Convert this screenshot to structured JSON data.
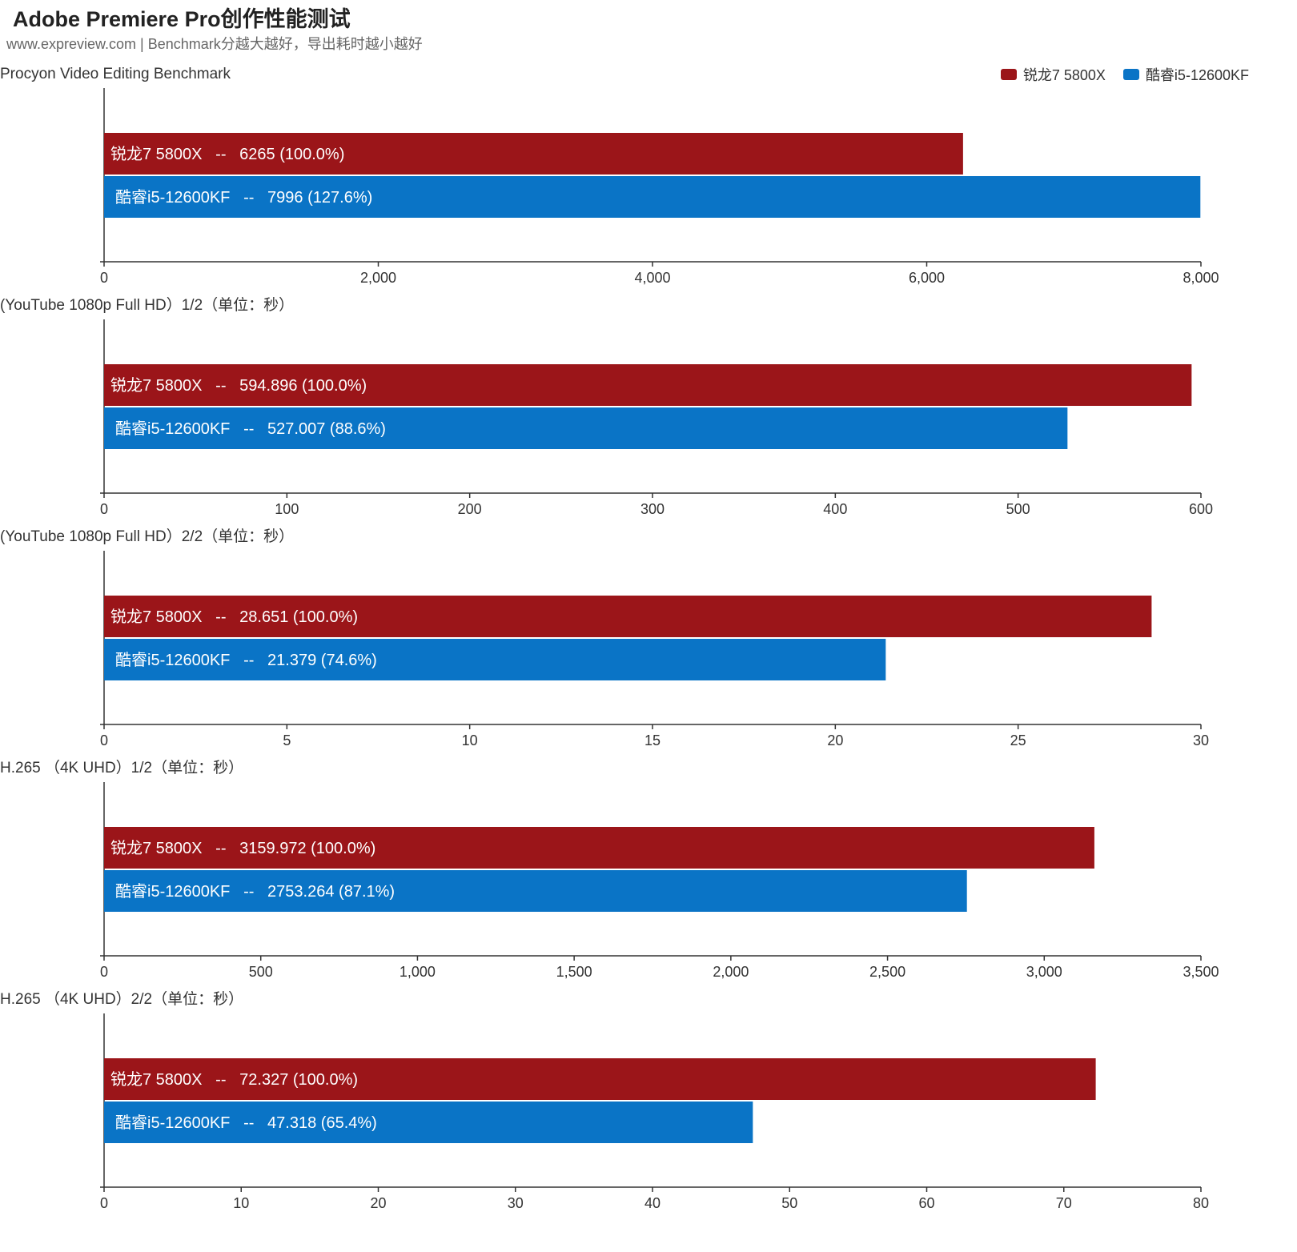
{
  "header": {
    "title": "Adobe Premiere Pro创作性能测试",
    "subtitle": "www.expreview.com | Benchmark分越大越好，导出耗时越小越好"
  },
  "legend": [
    {
      "label": "锐龙7 5800X",
      "color": "#9b1519"
    },
    {
      "label": "酷睿i5-12600KF",
      "color": "#0a74c6"
    }
  ],
  "chart_data": [
    {
      "type": "bar",
      "title": "Procyon Video Editing Benchmark",
      "xlim": [
        0,
        8000
      ],
      "ticks": [
        "0",
        "2,000",
        "4,000",
        "6,000",
        "8,000"
      ],
      "tick_values": [
        0,
        2000,
        4000,
        6000,
        8000
      ],
      "series": [
        {
          "name": "锐龙7 5800X",
          "value": 6265,
          "label": "锐龙7 5800X   --   6265 (100.0%)"
        },
        {
          "name": "酷睿i5-12600KF",
          "value": 7996,
          "label": "酷睿i5-12600KF   --   7996 (127.6%)"
        }
      ]
    },
    {
      "type": "bar",
      "title": "(YouTube 1080p Full HD）1/2（单位：秒）",
      "xlim": [
        0,
        600
      ],
      "ticks": [
        "0",
        "100",
        "200",
        "300",
        "400",
        "500",
        "600"
      ],
      "tick_values": [
        0,
        100,
        200,
        300,
        400,
        500,
        600
      ],
      "series": [
        {
          "name": "锐龙7 5800X",
          "value": 594.896,
          "label": "锐龙7 5800X   --   594.896 (100.0%)"
        },
        {
          "name": "酷睿i5-12600KF",
          "value": 527.007,
          "label": "酷睿i5-12600KF   --   527.007 (88.6%)"
        }
      ]
    },
    {
      "type": "bar",
      "title": "(YouTube 1080p Full HD）2/2（单位：秒）",
      "xlim": [
        0,
        30
      ],
      "ticks": [
        "0",
        "5",
        "10",
        "15",
        "20",
        "25",
        "30"
      ],
      "tick_values": [
        0,
        5,
        10,
        15,
        20,
        25,
        30
      ],
      "series": [
        {
          "name": "锐龙7 5800X",
          "value": 28.651,
          "label": "锐龙7 5800X   --   28.651 (100.0%)"
        },
        {
          "name": "酷睿i5-12600KF",
          "value": 21.379,
          "label": "酷睿i5-12600KF   --   21.379 (74.6%)"
        }
      ]
    },
    {
      "type": "bar",
      "title": "H.265 （4K UHD）1/2（单位：秒）",
      "xlim": [
        0,
        3500
      ],
      "ticks": [
        "0",
        "500",
        "1,000",
        "1,500",
        "2,000",
        "2,500",
        "3,000",
        "3,500"
      ],
      "tick_values": [
        0,
        500,
        1000,
        1500,
        2000,
        2500,
        3000,
        3500
      ],
      "series": [
        {
          "name": "锐龙7 5800X",
          "value": 3159.972,
          "label": "锐龙7 5800X   --   3159.972 (100.0%)"
        },
        {
          "name": "酷睿i5-12600KF",
          "value": 2753.264,
          "label": "酷睿i5-12600KF   --   2753.264 (87.1%)"
        }
      ]
    },
    {
      "type": "bar",
      "title": "H.265 （4K UHD）2/2（单位：秒）",
      "xlim": [
        0,
        80
      ],
      "ticks": [
        "0",
        "10",
        "20",
        "30",
        "40",
        "50",
        "60",
        "70",
        "80"
      ],
      "tick_values": [
        0,
        10,
        20,
        30,
        40,
        50,
        60,
        70,
        80
      ],
      "series": [
        {
          "name": "锐龙7 5800X",
          "value": 72.327,
          "label": "锐龙7 5800X   --   72.327 (100.0%)"
        },
        {
          "name": "酷睿i5-12600KF",
          "value": 47.318,
          "label": "酷睿i5-12600KF   --   47.318 (65.4%)"
        }
      ]
    }
  ]
}
